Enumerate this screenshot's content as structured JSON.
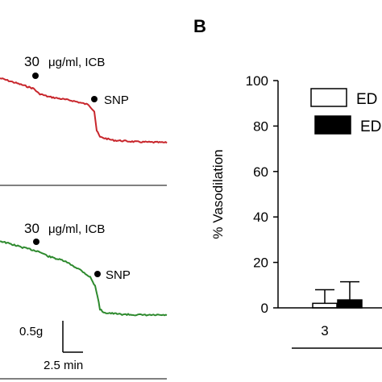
{
  "chart_data": [
    {
      "type": "line",
      "panel": "",
      "annotations": [
        {
          "label": "30",
          "unit": "μg/ml, ICB"
        },
        {
          "label": "SNP"
        }
      ],
      "line_color": "#c8262c"
    },
    {
      "type": "line",
      "panel": "",
      "annotations": [
        {
          "label": "30",
          "unit": "μg/ml, ICB"
        },
        {
          "label": "SNP"
        }
      ],
      "scale_bar": {
        "y_label": "0.5g",
        "x_label": "2.5 min"
      },
      "line_color": "#2e8a2e"
    },
    {
      "type": "bar",
      "panel": "B",
      "ylabel": "% Vasodilation",
      "ylim": [
        0,
        100
      ],
      "yticks": [
        "0",
        "20",
        "40",
        "60",
        "80",
        "100"
      ],
      "categories": [
        "3"
      ],
      "legend": {
        "placement": "top-right",
        "entries": [
          "ED",
          "ED"
        ]
      },
      "series": [
        {
          "name": "ED",
          "fill": "#ffffff",
          "values": [
            2
          ],
          "errors": [
            6
          ]
        },
        {
          "name": "ED",
          "fill": "#000000",
          "values": [
            3.5
          ],
          "errors": [
            8
          ]
        }
      ]
    }
  ]
}
